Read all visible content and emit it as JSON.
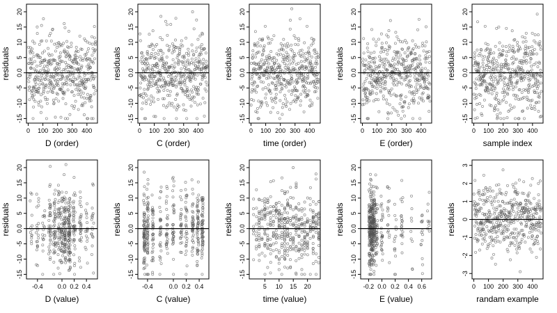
{
  "style": {
    "point_color": "#555555",
    "line_color": "#000000"
  },
  "chart_data": [
    {
      "type": "scatter",
      "xlabel": "D (order)",
      "ylabel": "residuals",
      "xlim": [
        -12,
        472
      ],
      "ylim": [
        -16.5,
        22.5
      ],
      "xticks": [
        0,
        100,
        200,
        300,
        400
      ],
      "yticks": [
        -15,
        -10,
        -5,
        0,
        5,
        10,
        15,
        20
      ],
      "ytick_labels": [
        "-15",
        "-10",
        "-5",
        "0.0",
        "5",
        "10",
        "15",
        "20"
      ],
      "hline": 0,
      "gen": {
        "kind": "index",
        "n": 460,
        "seed": 11
      }
    },
    {
      "type": "scatter",
      "xlabel": "C (order)",
      "ylabel": "residuals",
      "xlim": [
        -12,
        472
      ],
      "ylim": [
        -16.5,
        22.5
      ],
      "xticks": [
        0,
        100,
        200,
        300,
        400
      ],
      "yticks": [
        -15,
        -10,
        -5,
        0,
        5,
        10,
        15,
        20
      ],
      "ytick_labels": [
        "-15",
        "-10",
        "-5",
        "0.0",
        "5",
        "10",
        "15",
        "20"
      ],
      "hline": 0,
      "gen": {
        "kind": "index",
        "n": 460,
        "seed": 12
      }
    },
    {
      "type": "scatter",
      "xlabel": "time (order)",
      "ylabel": "residuals",
      "xlim": [
        -12,
        472
      ],
      "ylim": [
        -16.5,
        22.5
      ],
      "xticks": [
        0,
        100,
        200,
        300,
        400
      ],
      "yticks": [
        -15,
        -10,
        -5,
        0,
        5,
        10,
        15,
        20
      ],
      "ytick_labels": [
        "-15",
        "-10",
        "-5",
        "0.0",
        "5",
        "10",
        "15",
        "20"
      ],
      "hline": 0,
      "gen": {
        "kind": "index",
        "n": 460,
        "seed": 13
      }
    },
    {
      "type": "scatter",
      "xlabel": "E (order)",
      "ylabel": "residuals",
      "xlim": [
        -12,
        472
      ],
      "ylim": [
        -16.5,
        22.5
      ],
      "xticks": [
        0,
        100,
        200,
        300,
        400
      ],
      "yticks": [
        -15,
        -10,
        -5,
        0,
        5,
        10,
        15,
        20
      ],
      "ytick_labels": [
        "-15",
        "-10",
        "-5",
        "0.0",
        "5",
        "10",
        "15",
        "20"
      ],
      "hline": 0,
      "gen": {
        "kind": "index",
        "n": 460,
        "seed": 14
      }
    },
    {
      "type": "scatter",
      "xlabel": "sample index",
      "ylabel": "residuals",
      "xlim": [
        -12,
        472
      ],
      "ylim": [
        -16.5,
        22.5
      ],
      "xticks": [
        0,
        100,
        200,
        300,
        400
      ],
      "yticks": [
        -15,
        -10,
        -5,
        0,
        5,
        10,
        15,
        20
      ],
      "ytick_labels": [
        "-15",
        "-10",
        "-5",
        "0.0",
        "5",
        "10",
        "15",
        "20"
      ],
      "hline": 0,
      "gen": {
        "kind": "index",
        "n": 460,
        "seed": 15
      }
    },
    {
      "type": "scatter",
      "xlabel": "D (value)",
      "ylabel": "residuals",
      "xlim": [
        -0.58,
        0.58
      ],
      "ylim": [
        -16.5,
        22.5
      ],
      "xticks": [
        -0.4,
        0.0,
        0.2,
        0.4
      ],
      "xtick_labels": [
        "-0.4",
        "0.0",
        "0.2",
        "0.4"
      ],
      "yticks": [
        -15,
        -10,
        -5,
        0,
        5,
        10,
        15,
        20
      ],
      "ytick_labels": [
        "-15",
        "-10",
        "-5",
        "0.0",
        "5",
        "10",
        "15",
        "20"
      ],
      "hline": 0,
      "gen": {
        "kind": "clusters",
        "n": 460,
        "seed": 21,
        "centers": [
          -0.5,
          -0.4,
          -0.3,
          -0.2,
          -0.12,
          -0.05,
          0.0,
          0.05,
          0.12,
          0.2,
          0.3,
          0.4,
          0.5
        ],
        "weights": [
          1,
          2,
          2,
          3,
          4,
          4,
          4,
          5,
          6,
          4,
          3,
          2,
          1
        ],
        "jitter": 0.02
      }
    },
    {
      "type": "scatter",
      "xlabel": "C (value)",
      "ylabel": "residuals",
      "xlim": [
        -0.55,
        0.55
      ],
      "ylim": [
        -16.5,
        22.5
      ],
      "xticks": [
        -0.4,
        0.0,
        0.2,
        0.4
      ],
      "xtick_labels": [
        "-0.4",
        "0.0",
        "0.2",
        "0.4"
      ],
      "yticks": [
        -15,
        -10,
        -5,
        0,
        5,
        10,
        15,
        20
      ],
      "ytick_labels": [
        "-15",
        "-10",
        "-5",
        "0.0",
        "5",
        "10",
        "15",
        "20"
      ],
      "hline": 0,
      "gen": {
        "kind": "clusters",
        "n": 460,
        "seed": 22,
        "centers": [
          -0.45,
          -0.4,
          -0.32,
          -0.2,
          -0.1,
          0.0,
          0.12,
          0.2,
          0.3,
          0.38,
          0.45
        ],
        "weights": [
          5,
          4,
          3,
          2,
          2,
          3,
          2,
          2,
          3,
          5,
          5
        ],
        "jitter": 0.012
      }
    },
    {
      "type": "scatter",
      "xlabel": "time (value)",
      "ylabel": "residuals",
      "xlim": [
        -0.5,
        24.5
      ],
      "ylim": [
        -16.5,
        22.5
      ],
      "xticks": [
        5,
        10,
        15,
        20
      ],
      "xtick_labels": [
        "5",
        "10",
        "15",
        "20"
      ],
      "yticks": [
        -15,
        -10,
        -5,
        0,
        5,
        10,
        15,
        20
      ],
      "ytick_labels": [
        "-15",
        "-10",
        "-5",
        "0.0",
        "5",
        "10",
        "15",
        "20"
      ],
      "hline": 0,
      "gen": {
        "kind": "clusters",
        "n": 460,
        "seed": 23,
        "centers": [
          1,
          2,
          3,
          4,
          5,
          6,
          7,
          8,
          9,
          10,
          11,
          12,
          13,
          14,
          15,
          16,
          17,
          18,
          19,
          20,
          21,
          22,
          23,
          24
        ],
        "weights": [
          2,
          2,
          3,
          2,
          3,
          3,
          4,
          3,
          3,
          4,
          3,
          6,
          3,
          4,
          3,
          3,
          4,
          3,
          2,
          3,
          3,
          4,
          3,
          4
        ],
        "jitter": 0.05
      }
    },
    {
      "type": "scatter",
      "xlabel": "E (value)",
      "ylabel": "residuals",
      "xlim": [
        -0.32,
        0.75
      ],
      "ylim": [
        -16.5,
        22.5
      ],
      "xticks": [
        -0.2,
        0.0,
        0.2,
        0.4,
        0.6
      ],
      "xtick_labels": [
        "-0.2",
        "0.0",
        "0.2",
        "0.4",
        "0.6"
      ],
      "yticks": [
        -15,
        -10,
        -5,
        0,
        5,
        10,
        15,
        20
      ],
      "ytick_labels": [
        "-15",
        "-10",
        "-5",
        "0.0",
        "5",
        "10",
        "15",
        "20"
      ],
      "hline": 0,
      "gen": {
        "kind": "clusters",
        "n": 460,
        "seed": 24,
        "centers": [
          -0.18,
          -0.15,
          -0.12,
          -0.08,
          0.0,
          0.1,
          0.2,
          0.3,
          0.45,
          0.6,
          0.7
        ],
        "weights": [
          10,
          12,
          9,
          4,
          3,
          2,
          2,
          2,
          1,
          1,
          1
        ],
        "jitter": 0.015
      }
    },
    {
      "type": "scatter",
      "xlabel": "randam example",
      "ylabel": "residuals",
      "xlim": [
        -12,
        472
      ],
      "ylim": [
        -3.3,
        3.3
      ],
      "xticks": [
        0,
        100,
        200,
        300,
        400
      ],
      "yticks": [
        -3,
        -2,
        -1,
        0,
        1,
        2,
        3
      ],
      "ytick_labels": [
        "-3",
        "-2",
        "-1",
        "0",
        "1",
        "2",
        "3"
      ],
      "hline": 0,
      "gen": {
        "kind": "index",
        "n": 460,
        "seed": 31,
        "sd": 1
      }
    }
  ]
}
